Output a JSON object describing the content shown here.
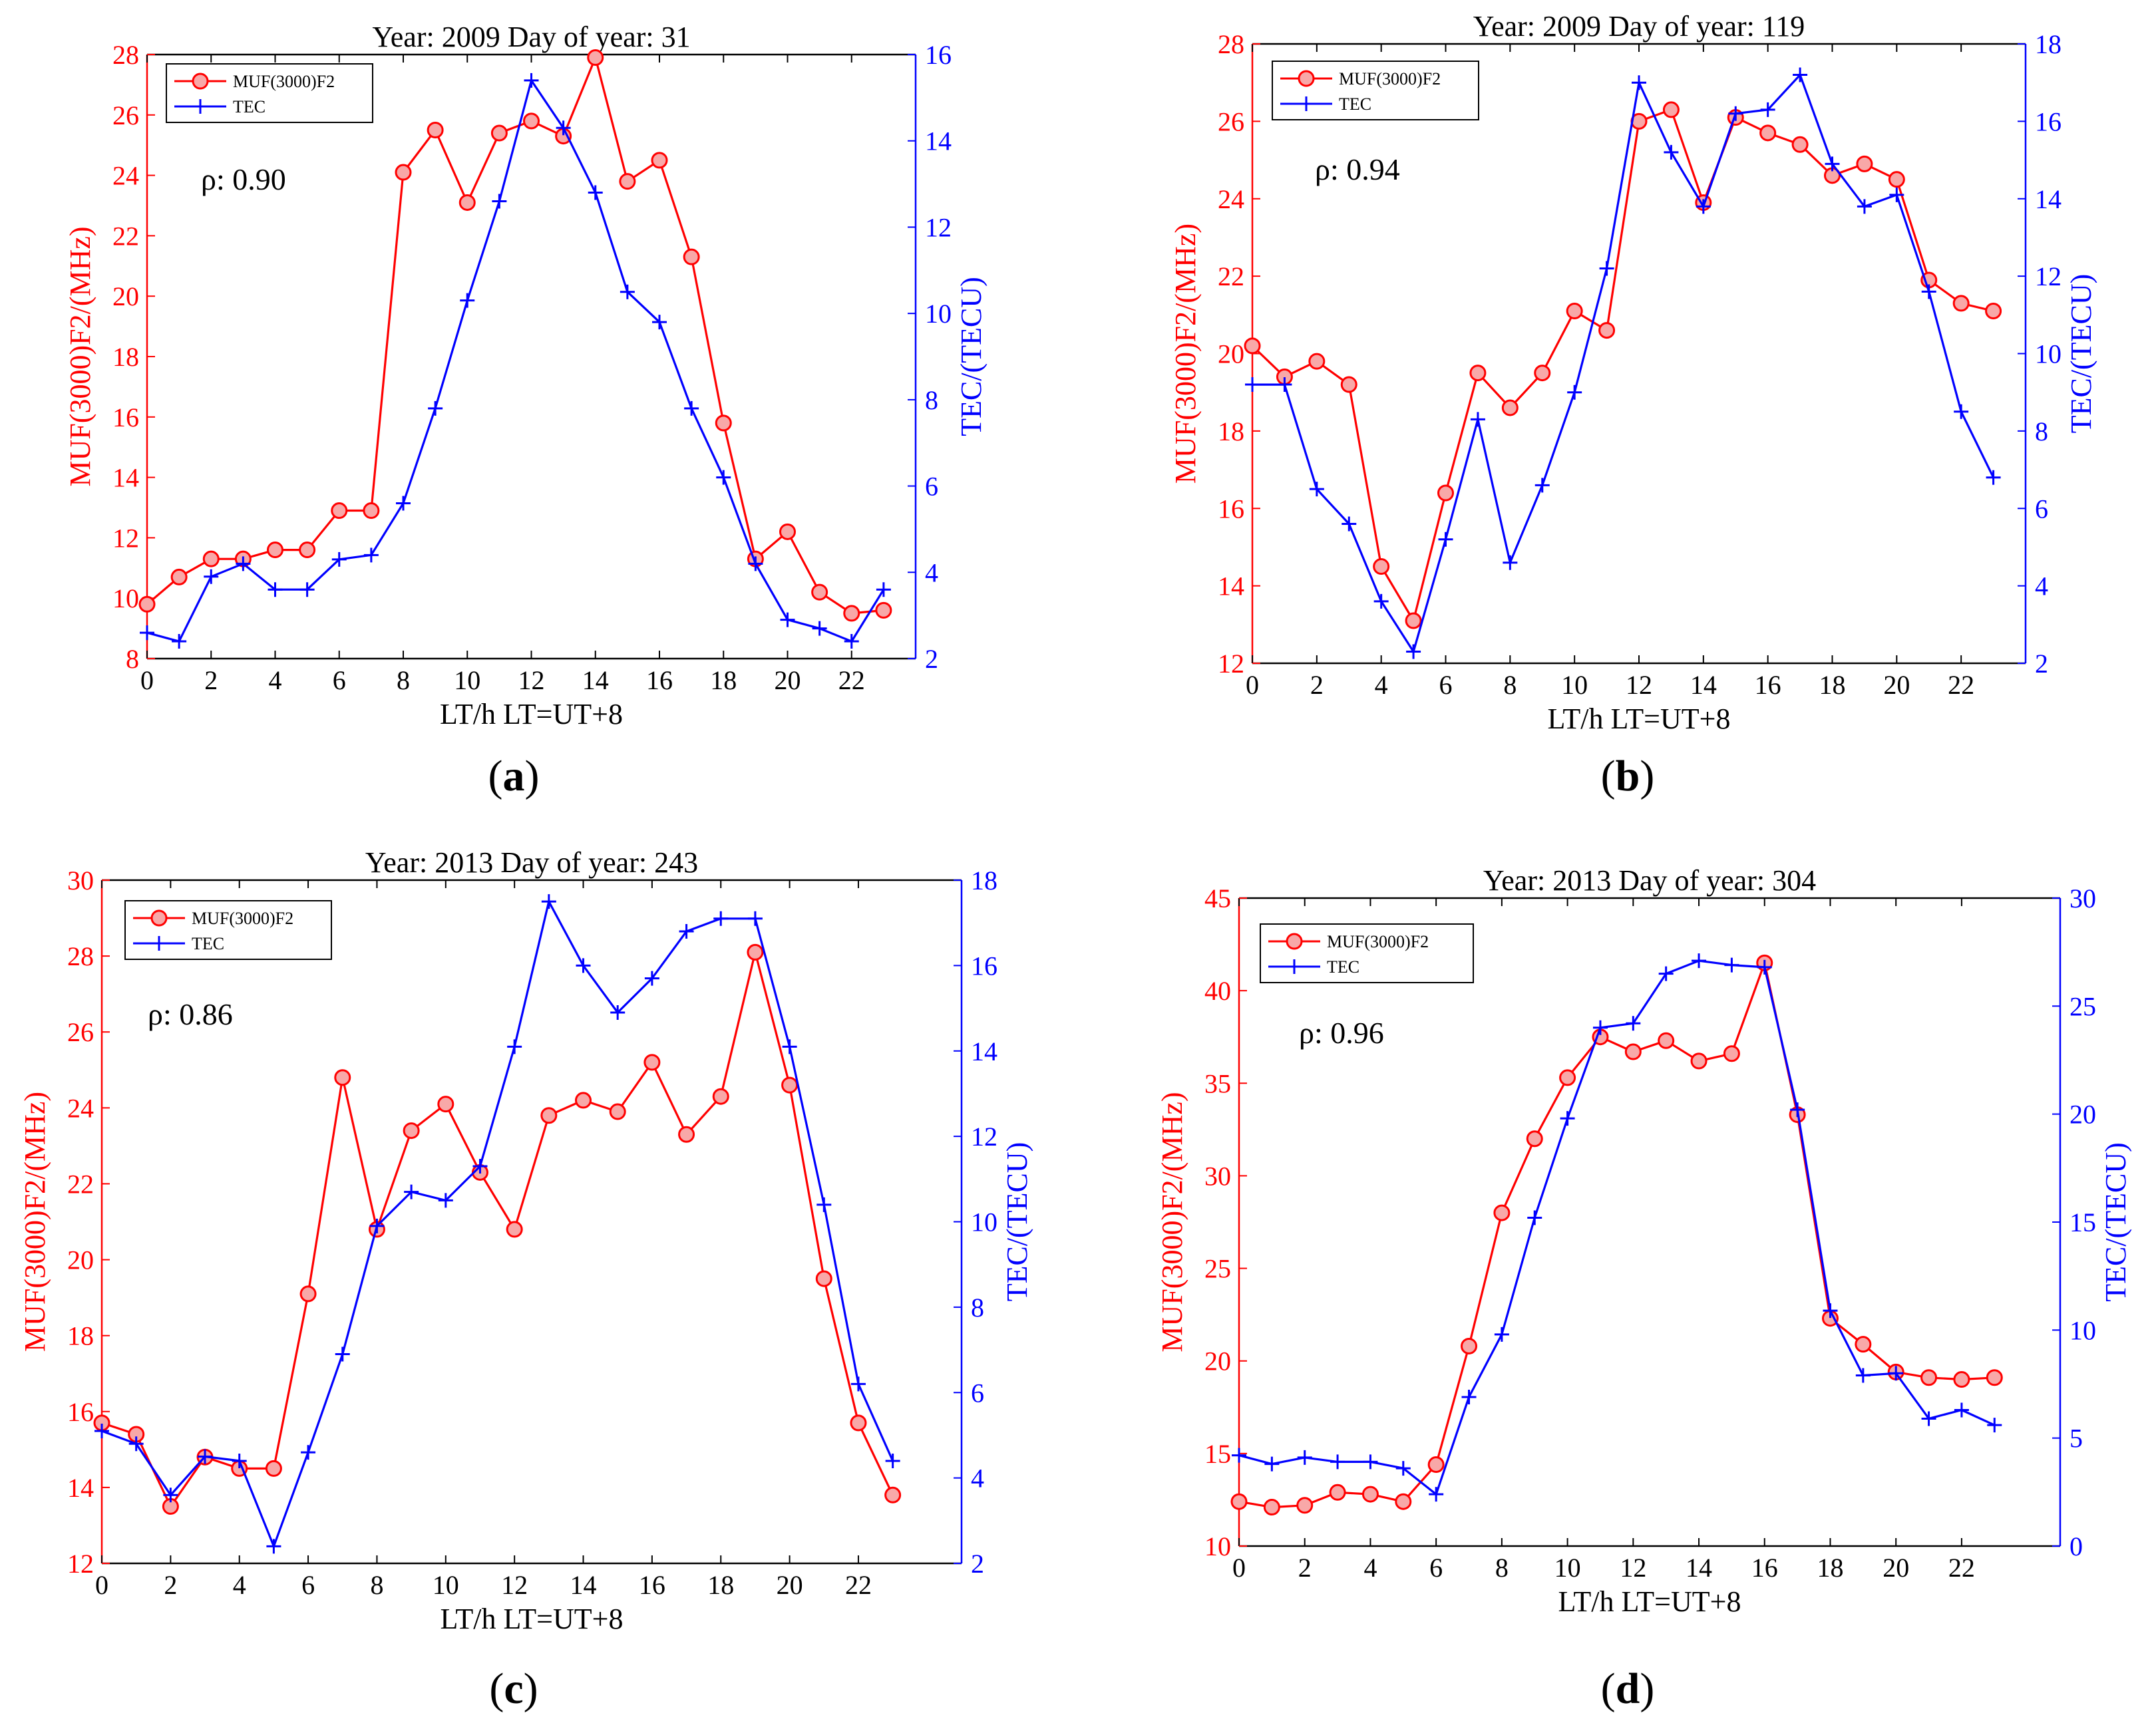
{
  "colors": {
    "muf": "#ff0000",
    "tec": "#0000ff",
    "axis": "#000000"
  },
  "chart_data": [
    {
      "type": "line",
      "title": "Year: 2009  Day of year: 31",
      "caption": "a",
      "rho_text": "ρ: 0.90",
      "xlabel": "LT/h LT=UT+8",
      "ylabel_left": "MUF(3000)F2/(MHz)",
      "ylabel_right": "TEC/(TECU)",
      "xlim": [
        0,
        24
      ],
      "ylim_left": [
        8,
        28
      ],
      "ylim_right": [
        2,
        16
      ],
      "xticks": [
        0,
        2,
        4,
        6,
        8,
        10,
        12,
        14,
        16,
        18,
        20,
        22
      ],
      "yticks_left": [
        8,
        10,
        12,
        14,
        16,
        18,
        20,
        22,
        24,
        26,
        28
      ],
      "yticks_right": [
        2,
        4,
        6,
        8,
        10,
        12,
        14,
        16
      ],
      "legend": [
        "MUF(3000)F2",
        "TEC"
      ],
      "x": [
        0,
        1,
        2,
        3,
        4,
        5,
        6,
        7,
        8,
        9,
        10,
        11,
        12,
        13,
        14,
        15,
        16,
        17,
        18,
        19,
        20,
        21,
        22,
        23
      ],
      "series": [
        {
          "name": "MUF(3000)F2",
          "axis": "left",
          "values": [
            9.8,
            10.7,
            11.3,
            11.3,
            11.6,
            11.6,
            12.9,
            12.9,
            24.1,
            25.5,
            23.1,
            25.4,
            25.8,
            25.3,
            27.9,
            23.8,
            24.5,
            21.3,
            15.8,
            11.3,
            12.2,
            10.2,
            9.5,
            9.6
          ]
        },
        {
          "name": "TEC",
          "axis": "right",
          "values": [
            2.6,
            2.4,
            3.9,
            4.2,
            3.6,
            3.6,
            4.3,
            4.4,
            5.6,
            7.8,
            10.3,
            12.6,
            15.4,
            14.3,
            12.8,
            10.5,
            9.8,
            7.8,
            6.2,
            4.2,
            2.9,
            2.7,
            2.4,
            3.6
          ]
        }
      ]
    },
    {
      "type": "line",
      "title": "Year: 2009  Day of year: 119",
      "caption": "b",
      "rho_text": "ρ: 0.94",
      "xlabel": "LT/h LT=UT+8",
      "ylabel_left": "MUF(3000)F2/(MHz)",
      "ylabel_right": "TEC/(TECU)",
      "xlim": [
        0,
        24
      ],
      "ylim_left": [
        12,
        28
      ],
      "ylim_right": [
        2,
        18
      ],
      "xticks": [
        0,
        2,
        4,
        6,
        8,
        10,
        12,
        14,
        16,
        18,
        20,
        22
      ],
      "yticks_left": [
        12,
        14,
        16,
        18,
        20,
        22,
        24,
        26,
        28
      ],
      "yticks_right": [
        2,
        4,
        6,
        8,
        10,
        12,
        14,
        16,
        18
      ],
      "legend": [
        "MUF(3000)F2",
        "TEC"
      ],
      "x": [
        0,
        1,
        2,
        3,
        4,
        5,
        6,
        7,
        8,
        9,
        10,
        11,
        12,
        13,
        14,
        15,
        16,
        17,
        18,
        19,
        20,
        21,
        22,
        23
      ],
      "series": [
        {
          "name": "MUF(3000)F2",
          "axis": "left",
          "values": [
            20.2,
            19.4,
            19.8,
            19.2,
            14.5,
            13.1,
            16.4,
            19.5,
            18.6,
            19.5,
            21.1,
            20.6,
            26.0,
            26.3,
            23.9,
            26.1,
            25.7,
            25.4,
            24.6,
            24.9,
            24.5,
            21.9,
            21.3,
            21.1
          ]
        },
        {
          "name": "TEC",
          "axis": "right",
          "values": [
            9.2,
            9.2,
            6.5,
            5.6,
            3.6,
            2.3,
            5.2,
            8.3,
            4.6,
            6.6,
            9.0,
            12.2,
            17.0,
            15.2,
            13.8,
            16.2,
            16.3,
            17.2,
            14.9,
            13.8,
            14.1,
            11.6,
            8.5,
            6.8
          ]
        }
      ]
    },
    {
      "type": "line",
      "title": "Year: 2013  Day of year: 243",
      "caption": "c",
      "rho_text": "ρ: 0.86",
      "xlabel": "LT/h LT=UT+8",
      "ylabel_left": "MUF(3000)F2/(MHz)",
      "ylabel_right": "TEC/(TECU)",
      "xlim": [
        0,
        25
      ],
      "ylim_left": [
        12,
        30
      ],
      "ylim_right": [
        2,
        18
      ],
      "xticks": [
        0,
        2,
        4,
        6,
        8,
        10,
        12,
        14,
        16,
        18,
        20,
        22
      ],
      "yticks_left": [
        12,
        14,
        16,
        18,
        20,
        22,
        24,
        26,
        28,
        30
      ],
      "yticks_right": [
        2,
        4,
        6,
        8,
        10,
        12,
        14,
        16,
        18
      ],
      "legend": [
        "MUF(3000)F2",
        "TEC"
      ],
      "x": [
        0,
        1,
        2,
        3,
        4,
        5,
        6,
        7,
        8,
        9,
        10,
        11,
        12,
        13,
        14,
        15,
        16,
        17,
        18,
        19,
        20,
        21,
        22,
        23
      ],
      "series": [
        {
          "name": "MUF(3000)F2",
          "axis": "left",
          "values": [
            15.7,
            15.4,
            13.5,
            14.8,
            14.5,
            14.5,
            19.1,
            24.8,
            20.8,
            23.4,
            24.1,
            22.3,
            20.8,
            23.8,
            24.2,
            23.9,
            25.2,
            23.3,
            24.3,
            28.1,
            24.6,
            19.5,
            15.7,
            13.8
          ]
        },
        {
          "name": "TEC",
          "axis": "right",
          "values": [
            5.1,
            4.8,
            3.6,
            4.5,
            4.4,
            2.4,
            4.6,
            6.9,
            9.9,
            10.7,
            10.5,
            11.3,
            14.1,
            17.5,
            16.0,
            14.9,
            15.7,
            16.8,
            17.1,
            17.1,
            14.1,
            10.4,
            6.2,
            4.4
          ]
        }
      ]
    },
    {
      "type": "line",
      "title": "Year: 2013  Day of year: 304",
      "caption": "d",
      "rho_text": "ρ: 0.96",
      "xlabel": "LT/h LT=UT+8",
      "ylabel_left": "MUF(3000)F2/(MHz)",
      "ylabel_right": "TEC/(TECU)",
      "xlim": [
        0,
        25
      ],
      "ylim_left": [
        10,
        45
      ],
      "ylim_right": [
        0,
        30
      ],
      "xticks": [
        0,
        2,
        4,
        6,
        8,
        10,
        12,
        14,
        16,
        18,
        20,
        22
      ],
      "yticks_left": [
        10,
        15,
        20,
        25,
        30,
        35,
        40,
        45
      ],
      "yticks_right": [
        0,
        5,
        10,
        15,
        20,
        25,
        30
      ],
      "legend": [
        "MUF(3000)F2",
        "TEC"
      ],
      "x": [
        0,
        1,
        2,
        3,
        4,
        5,
        6,
        7,
        8,
        9,
        10,
        11,
        12,
        13,
        14,
        15,
        16,
        17,
        18,
        19,
        20,
        21,
        22,
        23
      ],
      "series": [
        {
          "name": "MUF(3000)F2",
          "axis": "left",
          "values": [
            12.4,
            12.1,
            12.2,
            12.9,
            12.8,
            12.4,
            14.4,
            20.8,
            28.0,
            32.0,
            35.3,
            37.5,
            36.7,
            37.3,
            36.2,
            36.6,
            41.5,
            33.3,
            22.3,
            20.9,
            19.4,
            19.1,
            19.0,
            19.1
          ]
        },
        {
          "name": "TEC",
          "axis": "right",
          "values": [
            4.2,
            3.8,
            4.1,
            3.9,
            3.9,
            3.6,
            2.4,
            6.9,
            9.8,
            15.2,
            19.8,
            24.0,
            24.2,
            26.5,
            27.1,
            26.9,
            26.8,
            20.2,
            10.9,
            7.9,
            8.0,
            5.9,
            6.3,
            5.6
          ]
        }
      ]
    }
  ]
}
